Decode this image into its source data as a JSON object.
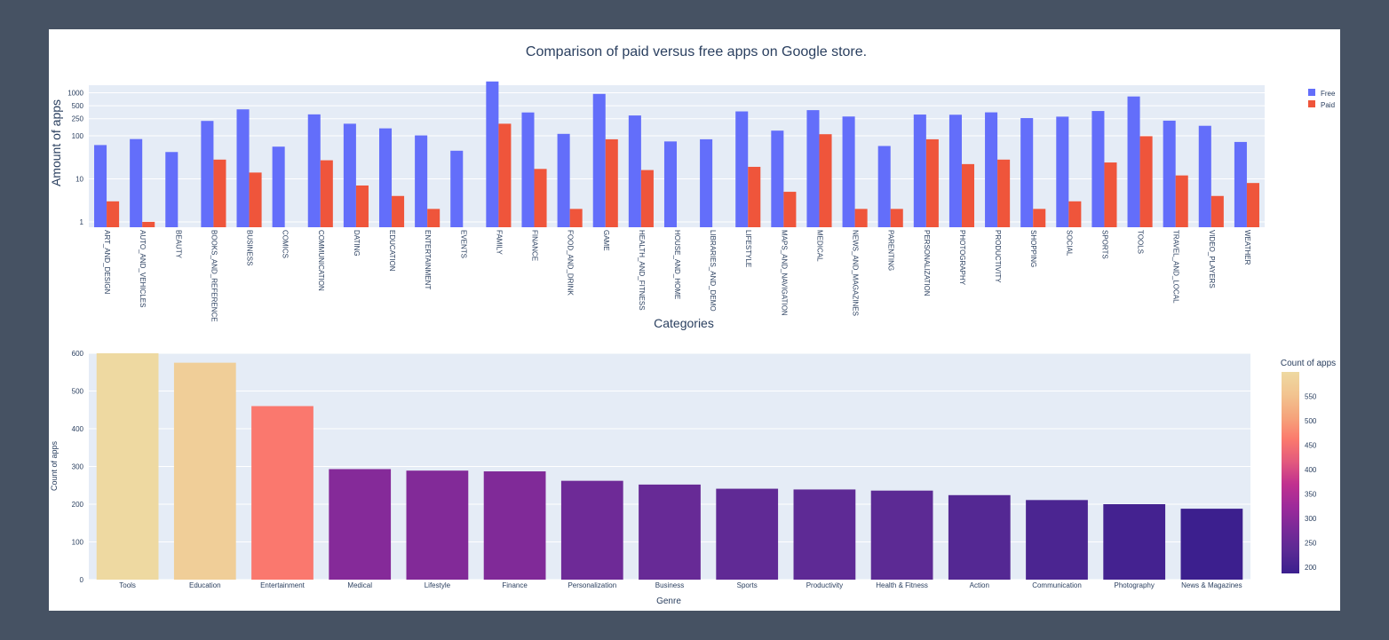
{
  "chart_data": [
    {
      "type": "bar",
      "title": "Comparison of paid versus free apps on Google store.",
      "xlabel": "Categories",
      "ylabel": "Amount of apps",
      "yscale": "log",
      "ylim": [
        0.75,
        1500
      ],
      "ytick_values": [
        1,
        10,
        100,
        250,
        500,
        1000
      ],
      "ytick_labels": [
        "1",
        "10",
        "100",
        "250",
        "500",
        "1000"
      ],
      "legend_position": "top-right",
      "grid": true,
      "categories": [
        "ART_AND_DESIGN",
        "AUTO_AND_VEHICLES",
        "BEAUTY",
        "BOOKS_AND_REFERENCE",
        "BUSINESS",
        "COMICS",
        "COMMUNICATION",
        "DATING",
        "EDUCATION",
        "ENTERTAINMENT",
        "EVENTS",
        "FAMILY",
        "FINANCE",
        "FOOD_AND_DRINK",
        "GAME",
        "HEALTH_AND_FITNESS",
        "HOUSE_AND_HOME",
        "LIBRARIES_AND_DEMO",
        "LIFESTYLE",
        "MAPS_AND_NAVIGATION",
        "MEDICAL",
        "NEWS_AND_MAGAZINES",
        "PARENTING",
        "PERSONALIZATION",
        "PHOTOGRAPHY",
        "PRODUCTIVITY",
        "SHOPPING",
        "SOCIAL",
        "SPORTS",
        "TOOLS",
        "TRAVEL_AND_LOCAL",
        "VIDEO_PLAYERS",
        "WEATHER"
      ],
      "series": [
        {
          "name": "Free",
          "color": "#636efa",
          "values": [
            61,
            84,
            42,
            222,
            412,
            56,
            315,
            191,
            149,
            102,
            45,
            1832,
            349,
            111,
            942,
            297,
            74,
            83,
            369,
            132,
            395,
            281,
            58,
            312,
            309,
            351,
            258,
            279,
            377,
            821,
            225,
            171,
            72
          ]
        },
        {
          "name": "Paid",
          "color": "#ef553b",
          "values": [
            3,
            1,
            null,
            28,
            14,
            null,
            27,
            7,
            4,
            2,
            null,
            191,
            17,
            2,
            83,
            16,
            null,
            null,
            19,
            5,
            109,
            2,
            2,
            83,
            22,
            28,
            2,
            3,
            24,
            98,
            12,
            4,
            8
          ]
        }
      ]
    },
    {
      "type": "bar",
      "xlabel": "Genre",
      "ylabel": "Count of apps",
      "ylim": [
        0,
        600
      ],
      "ytick_values": [
        0,
        100,
        200,
        300,
        400,
        500,
        600
      ],
      "grid": true,
      "colorbar": {
        "title": "Count of apps",
        "range": [
          187,
          600
        ],
        "tick_values": [
          200,
          250,
          300,
          350,
          400,
          450,
          500,
          550
        ]
      },
      "categories": [
        "Tools",
        "Education",
        "Entertainment",
        "Medical",
        "Lifestyle",
        "Finance",
        "Personalization",
        "Business",
        "Sports",
        "Productivity",
        "Health & Fitness",
        "Action",
        "Communication",
        "Photography",
        "News & Magazines"
      ],
      "values": [
        600,
        575,
        460,
        293,
        289,
        287,
        262,
        252,
        241,
        239,
        236,
        224,
        211,
        200,
        188
      ]
    }
  ],
  "colors": {
    "background": "#465263",
    "paper": "#ffffff",
    "plot": "#e5ecf6",
    "grid": "#ffffff",
    "text": "#2a3f5f",
    "colorscale": [
      "#0d0887",
      "#46039f",
      "#7201a8",
      "#9c179e",
      "#bd3786",
      "#d8576b",
      "#ed7953",
      "#fb9f3a",
      "#fdca26",
      "#f0f921"
    ],
    "colorscale_plasma_muted": [
      "#3b1f8e",
      "#5a2a94",
      "#7a2a98",
      "#9e2a9a",
      "#c1318f",
      "#e35a7d",
      "#fb7a6d",
      "#f5a57c",
      "#f2c490",
      "#eed9a1"
    ]
  }
}
